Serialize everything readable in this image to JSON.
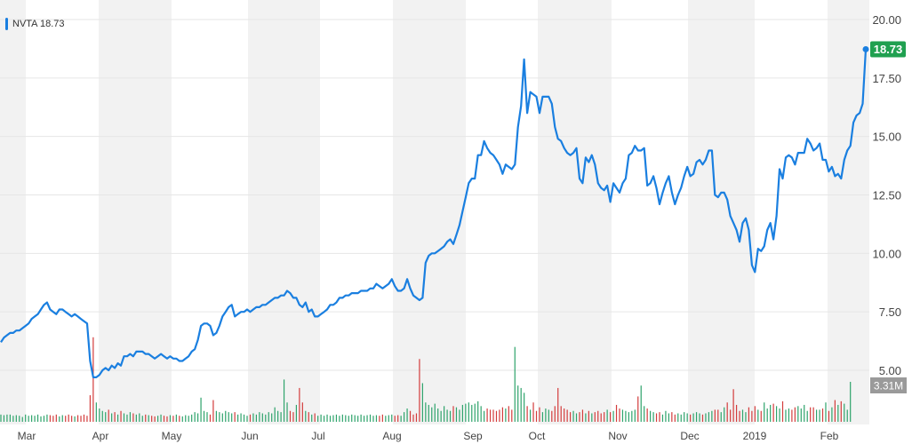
{
  "chart_data": {
    "type": "line",
    "symbol": "NVTA",
    "legend_label": "NVTA 18.73",
    "last_price_label": "18.73",
    "last_volume_label": "3.31M",
    "ylim": [
      4.0,
      20.5
    ],
    "y_ticks": [
      "5.00",
      "7.50",
      "10.00",
      "12.50",
      "15.00",
      "17.50",
      "20.00"
    ],
    "x_ticks": [
      "Mar",
      "Apr",
      "May",
      "Jun",
      "Jul",
      "Aug",
      "Sep",
      "Oct",
      "Nov",
      "Dec",
      "2019",
      "Feb"
    ],
    "grid": true,
    "legend_position": "top-left",
    "colors": {
      "line": "#1a7fe0",
      "price_badge": "#20a050",
      "volume_badge": "#9a9a9a",
      "volume_up": "#2ea36b",
      "volume_down": "#d33c3c",
      "band": "#f2f2f2"
    },
    "price": [
      6.2,
      6.4,
      6.5,
      6.6,
      6.6,
      6.7,
      6.7,
      6.8,
      6.9,
      7.0,
      7.2,
      7.3,
      7.4,
      7.6,
      7.8,
      7.9,
      7.6,
      7.5,
      7.4,
      7.6,
      7.6,
      7.5,
      7.4,
      7.3,
      7.4,
      7.3,
      7.2,
      7.1,
      7.0,
      5.4,
      4.7,
      4.7,
      4.8,
      5.0,
      5.1,
      5.0,
      5.2,
      5.1,
      5.3,
      5.2,
      5.6,
      5.6,
      5.7,
      5.6,
      5.8,
      5.8,
      5.8,
      5.7,
      5.7,
      5.6,
      5.5,
      5.6,
      5.7,
      5.6,
      5.5,
      5.6,
      5.5,
      5.5,
      5.4,
      5.4,
      5.5,
      5.6,
      5.8,
      5.9,
      6.3,
      6.9,
      7.0,
      7.0,
      6.9,
      6.5,
      6.6,
      6.9,
      7.3,
      7.5,
      7.7,
      7.8,
      7.3,
      7.4,
      7.5,
      7.5,
      7.6,
      7.5,
      7.6,
      7.7,
      7.7,
      7.8,
      7.8,
      7.9,
      8.0,
      8.1,
      8.1,
      8.2,
      8.2,
      8.4,
      8.3,
      8.1,
      8.1,
      7.8,
      7.7,
      7.9,
      7.5,
      7.6,
      7.3,
      7.3,
      7.4,
      7.5,
      7.6,
      7.8,
      7.8,
      7.9,
      8.1,
      8.1,
      8.2,
      8.2,
      8.3,
      8.3,
      8.3,
      8.4,
      8.4,
      8.4,
      8.5,
      8.5,
      8.7,
      8.6,
      8.5,
      8.6,
      8.7,
      8.9,
      8.6,
      8.4,
      8.4,
      8.5,
      8.9,
      8.5,
      8.2,
      8.1,
      8.0,
      8.1,
      9.6,
      9.9,
      10.0,
      10.0,
      10.1,
      10.2,
      10.3,
      10.5,
      10.6,
      10.4,
      10.8,
      11.2,
      11.8,
      12.4,
      13.0,
      13.2,
      13.2,
      14.2,
      14.2,
      14.8,
      14.5,
      14.3,
      14.2,
      14.0,
      13.8,
      13.4,
      13.8,
      13.7,
      13.6,
      13.8,
      15.4,
      16.3,
      18.3,
      16.0,
      16.9,
      16.8,
      16.7,
      16.0,
      16.7,
      16.7,
      16.7,
      16.4,
      15.4,
      14.9,
      14.8,
      14.5,
      14.3,
      14.2,
      14.3,
      14.5,
      13.2,
      13.0,
      14.1,
      13.9,
      14.2,
      13.8,
      13.0,
      12.8,
      12.7,
      12.9,
      12.2,
      13.0,
      12.8,
      12.6,
      13.0,
      13.2,
      14.2,
      14.3,
      14.6,
      14.4,
      14.4,
      14.5,
      12.9,
      13.0,
      13.3,
      12.8,
      12.1,
      12.6,
      13.0,
      13.3,
      12.6,
      12.1,
      12.5,
      12.8,
      13.3,
      13.7,
      13.3,
      13.4,
      13.9,
      14.0,
      13.8,
      14.0,
      14.4,
      14.4,
      12.5,
      12.4,
      12.6,
      12.6,
      12.3,
      11.6,
      11.3,
      11.0,
      10.5,
      11.3,
      11.5,
      11.0,
      9.5,
      9.2,
      10.2,
      10.1,
      10.3,
      11.0,
      11.3,
      10.6,
      11.6,
      13.6,
      13.2,
      14.1,
      14.2,
      14.1,
      13.8,
      14.3,
      14.3,
      14.3,
      14.9,
      14.7,
      14.4,
      14.5,
      14.7,
      14.0,
      14.0,
      13.5,
      13.7,
      13.3,
      13.4,
      13.2,
      14.0,
      14.4,
      14.6,
      15.6,
      15.9,
      16.0,
      16.4,
      18.73
    ],
    "volume_M": [
      0.6,
      0.55,
      0.6,
      0.6,
      0.5,
      0.55,
      0.5,
      0.4,
      0.6,
      0.5,
      0.55,
      0.5,
      0.6,
      0.45,
      0.5,
      0.6,
      0.55,
      0.5,
      0.6,
      0.45,
      0.55,
      0.5,
      0.6,
      0.5,
      0.45,
      0.55,
      0.5,
      0.6,
      0.5,
      2.2,
      7.0,
      1.6,
      1.1,
      0.9,
      0.8,
      1.0,
      0.7,
      0.8,
      0.6,
      0.9,
      0.7,
      0.6,
      0.8,
      0.7,
      0.6,
      0.7,
      0.5,
      0.6,
      0.55,
      0.5,
      0.45,
      0.5,
      0.6,
      0.5,
      0.45,
      0.55,
      0.5,
      0.6,
      0.5,
      0.45,
      0.55,
      0.5,
      0.6,
      0.8,
      0.7,
      2.0,
      0.9,
      0.8,
      0.6,
      1.8,
      0.9,
      0.8,
      0.7,
      0.9,
      0.8,
      0.7,
      0.8,
      0.6,
      0.7,
      0.6,
      0.5,
      0.6,
      0.7,
      0.6,
      0.8,
      0.7,
      0.6,
      0.8,
      0.7,
      1.2,
      0.9,
      0.8,
      3.5,
      1.6,
      0.9,
      0.8,
      1.4,
      2.8,
      1.6,
      0.9,
      0.8,
      0.6,
      0.7,
      0.5,
      0.6,
      0.5,
      0.6,
      0.5,
      0.55,
      0.6,
      0.5,
      0.6,
      0.55,
      0.5,
      0.6,
      0.55,
      0.5,
      0.6,
      0.5,
      0.55,
      0.6,
      0.5,
      0.55,
      0.5,
      0.6,
      0.5,
      0.55,
      0.6,
      0.5,
      0.55,
      0.5,
      0.8,
      1.1,
      0.9,
      0.6,
      0.7,
      5.2,
      3.2,
      1.6,
      1.4,
      1.2,
      1.5,
      1.1,
      0.9,
      1.3,
      1.0,
      0.9,
      1.3,
      1.2,
      1.0,
      1.4,
      1.5,
      1.6,
      1.4,
      1.5,
      1.7,
      1.3,
      0.9,
      1.1,
      1.0,
      1.0,
      0.9,
      1.0,
      1.2,
      1.1,
      1.3,
      1.0,
      6.2,
      3.0,
      2.8,
      2.4,
      1.3,
      1.0,
      1.6,
      0.9,
      1.2,
      0.8,
      1.1,
      1.0,
      0.9,
      1.3,
      2.8,
      1.3,
      1.1,
      1.0,
      0.8,
      0.9,
      0.7,
      0.8,
      1.0,
      0.7,
      0.9,
      0.7,
      0.8,
      0.9,
      0.7,
      0.8,
      1.0,
      0.8,
      0.9,
      1.4,
      1.1,
      1.0,
      0.9,
      0.8,
      0.9,
      1.0,
      2.1,
      3.0,
      1.3,
      1.1,
      0.9,
      0.8,
      0.7,
      0.8,
      0.6,
      0.9,
      0.7,
      0.8,
      0.6,
      0.7,
      0.6,
      0.8,
      0.7,
      0.6,
      0.7,
      0.8,
      0.7,
      0.6,
      0.7,
      0.8,
      0.9,
      1.0,
      1.0,
      0.8,
      1.2,
      1.6,
      1.0,
      2.7,
      1.4,
      0.9,
      1.0,
      0.8,
      1.2,
      0.9,
      1.3,
      1.0,
      0.9,
      1.6,
      1.1,
      1.4,
      1.5,
      1.3,
      1.1,
      1.7,
      1.0,
      1.1,
      1.0,
      1.2,
      1.3,
      1.1,
      1.4,
      0.9,
      1.2,
      1.2,
      1.0,
      1.0,
      1.1,
      1.6,
      0.9,
      1.2,
      1.8,
      1.4,
      1.7,
      1.5,
      1.0,
      3.31
    ]
  }
}
